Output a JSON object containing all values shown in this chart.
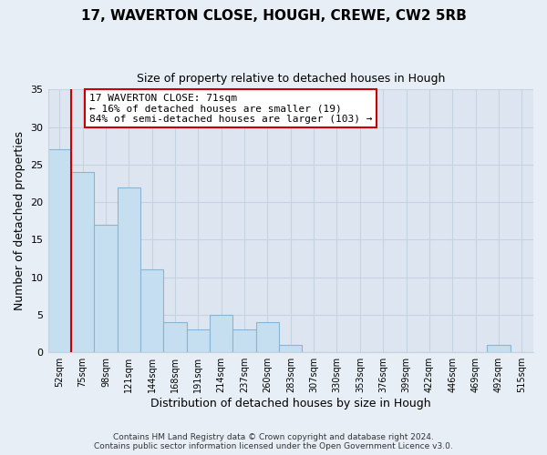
{
  "title": "17, WAVERTON CLOSE, HOUGH, CREWE, CW2 5RB",
  "subtitle": "Size of property relative to detached houses in Hough",
  "xlabel": "Distribution of detached houses by size in Hough",
  "ylabel": "Number of detached properties",
  "bar_labels": [
    "52sqm",
    "75sqm",
    "98sqm",
    "121sqm",
    "144sqm",
    "168sqm",
    "191sqm",
    "214sqm",
    "237sqm",
    "260sqm",
    "283sqm",
    "307sqm",
    "330sqm",
    "353sqm",
    "376sqm",
    "399sqm",
    "422sqm",
    "446sqm",
    "469sqm",
    "492sqm",
    "515sqm"
  ],
  "bar_heights": [
    27,
    24,
    17,
    22,
    11,
    4,
    3,
    5,
    3,
    4,
    1,
    0,
    0,
    0,
    0,
    0,
    0,
    0,
    0,
    1,
    0
  ],
  "bar_color": "#c5dff0",
  "bar_edge_color": "#8ab4d4",
  "ylim": [
    0,
    35
  ],
  "yticks": [
    0,
    5,
    10,
    15,
    20,
    25,
    30,
    35
  ],
  "annotation_title": "17 WAVERTON CLOSE: 71sqm",
  "annotation_line1": "← 16% of detached houses are smaller (19)",
  "annotation_line2": "84% of semi-detached houses are larger (103) →",
  "footer_line1": "Contains HM Land Registry data © Crown copyright and database right 2024.",
  "footer_line2": "Contains public sector information licensed under the Open Government Licence v3.0.",
  "bg_color": "#e8eef5",
  "plot_bg_color": "#dde6f0",
  "annotation_box_color": "#ffffff",
  "annotation_border_color": "#cc0000",
  "marker_line_color": "#cc0000",
  "grid_color": "#c5d3e0",
  "marker_bar_index": 0,
  "title_fontsize": 11,
  "subtitle_fontsize": 9
}
